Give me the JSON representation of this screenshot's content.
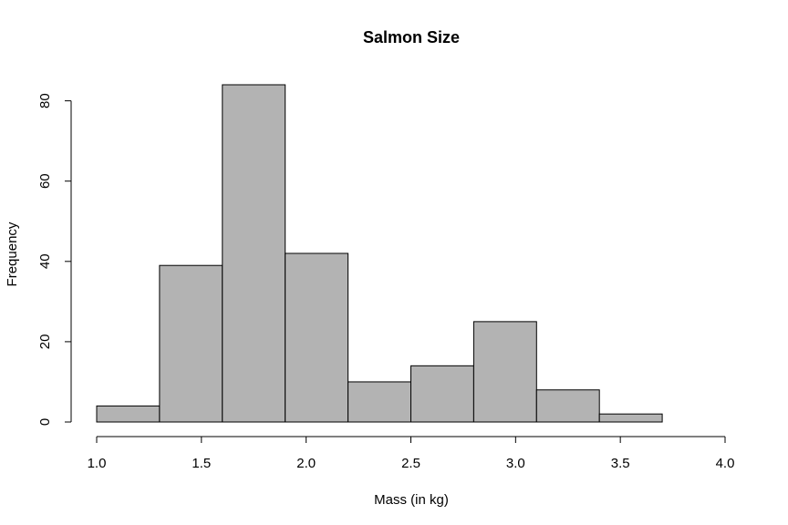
{
  "chart_data": {
    "type": "bar",
    "title": "Salmon Size",
    "xlabel": "Mass (in kg)",
    "ylabel": "Frequency",
    "bin_edges": [
      1.0,
      1.3,
      1.6,
      1.9,
      2.2,
      2.5,
      2.8,
      3.1,
      3.4,
      3.7,
      4.0
    ],
    "values": [
      4,
      39,
      84,
      42,
      10,
      14,
      25,
      8,
      2,
      0
    ],
    "x_ticks": [
      "1.0",
      "1.5",
      "2.0",
      "2.5",
      "3.0",
      "3.5",
      "4.0"
    ],
    "y_ticks": [
      "0",
      "20",
      "40",
      "60",
      "80"
    ],
    "xlim": [
      1.0,
      4.0
    ],
    "ylim": [
      0,
      84
    ],
    "bar_color": "#b3b3b3",
    "grid": false,
    "legend": "none"
  }
}
